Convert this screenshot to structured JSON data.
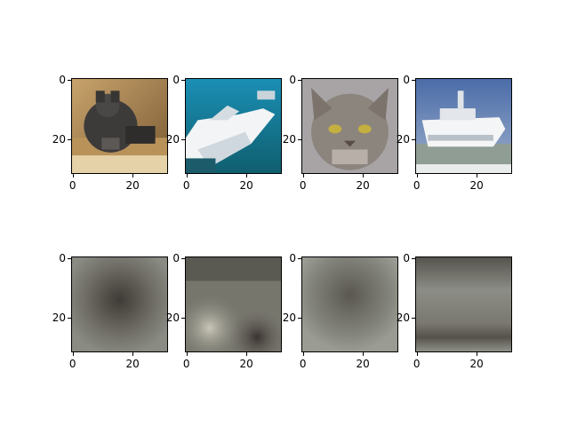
{
  "panels": [
    {
      "name": "cat-photo",
      "row": "input",
      "subject": "dark tabby cat lying on a wooden surface"
    },
    {
      "name": "boat-photo",
      "row": "input",
      "subject": "white speedboat on blue-green water"
    },
    {
      "name": "cat-face-photo",
      "row": "input",
      "subject": "grey tabby cat face close-up"
    },
    {
      "name": "ship-photo",
      "row": "input",
      "subject": "white ship on water with sky background"
    },
    {
      "name": "recon-1",
      "row": "reconstruction",
      "subject": "blurry grey reconstruction with dark center blob"
    },
    {
      "name": "recon-2",
      "row": "reconstruction",
      "subject": "blurry reconstruction with light patch left and dark patch bottom-right"
    },
    {
      "name": "recon-3",
      "row": "reconstruction",
      "subject": "blurry grey reconstruction with faint dark center"
    },
    {
      "name": "recon-4",
      "row": "reconstruction",
      "subject": "blurry grey reconstruction with darker bottom band"
    }
  ],
  "axis": {
    "y_ticks": [
      "0",
      "20"
    ],
    "x_ticks": [
      "0",
      "20"
    ]
  },
  "colors": {
    "background": "#ffffff",
    "axis": "#000000"
  }
}
